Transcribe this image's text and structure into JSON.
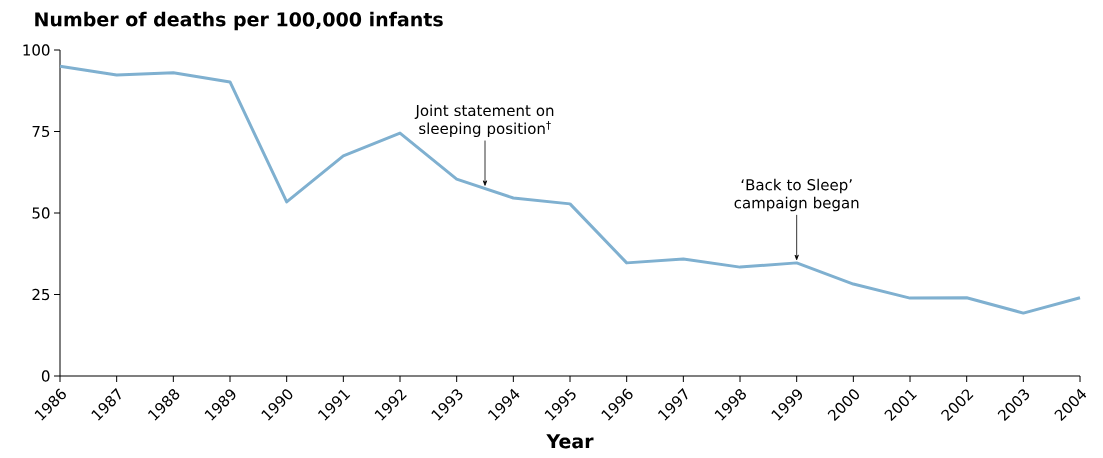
{
  "chart_data": {
    "type": "line",
    "ylabel": "Number of deaths per 100,000 infants",
    "xlabel": "Year",
    "x": [
      1986,
      1987,
      1988,
      1989,
      1990,
      1991,
      1992,
      1993,
      1994,
      1995,
      1996,
      1997,
      1998,
      1999,
      2000,
      2001,
      2002,
      2003,
      2004
    ],
    "values": [
      95,
      92.3,
      93,
      90.2,
      53.4,
      67.5,
      74.5,
      60.4,
      54.6,
      52.8,
      34.7,
      35.9,
      33.4,
      34.7,
      28.2,
      23.9,
      24,
      19.3,
      24
    ],
    "color": "#7fb0d0",
    "xlim": [
      1986,
      2004
    ],
    "xticks": [
      1986,
      1987,
      1988,
      1989,
      1990,
      1991,
      1992,
      1993,
      1994,
      1995,
      1996,
      1997,
      1998,
      1999,
      2000,
      2001,
      2002,
      2003,
      2004
    ],
    "ylim": [
      0,
      100
    ],
    "yticks": [
      0,
      25,
      50,
      75,
      100
    ],
    "grid": false,
    "marker": "none",
    "line_style": "solid",
    "annotations": [
      {
        "text": "Joint statement on sleeping position$^{†}$",
        "x": 1993.5,
        "y": 57.5
      },
      {
        "text": "‘Back to Sleep’ campaign began",
        "x": 1999,
        "y": 34.7
      }
    ]
  }
}
